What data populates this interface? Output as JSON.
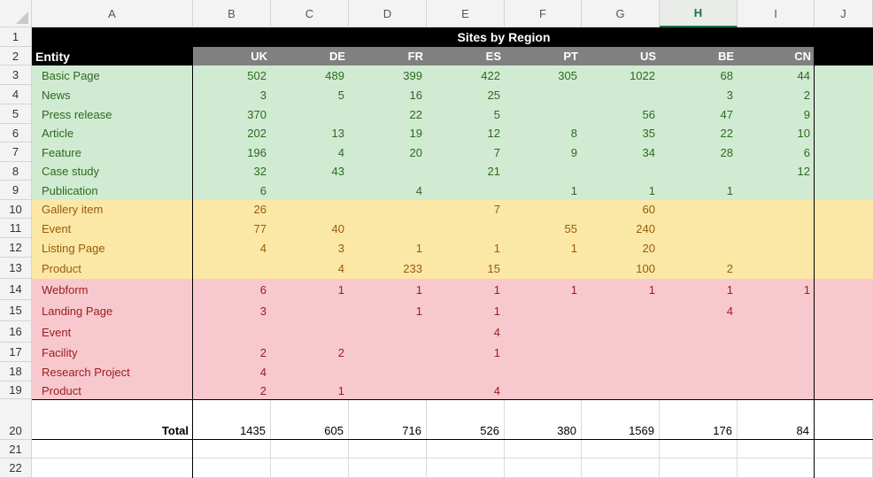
{
  "sheet": {
    "columns": [
      "A",
      "B",
      "C",
      "D",
      "E",
      "F",
      "G",
      "H",
      "I",
      "J"
    ],
    "selected_column": "H",
    "row_numbers": [
      "1",
      "2",
      "3",
      "4",
      "5",
      "6",
      "7",
      "8",
      "9",
      "10",
      "11",
      "12",
      "13",
      "14",
      "15",
      "16",
      "17",
      "18",
      "19",
      "20",
      "21",
      "22"
    ],
    "title": "Sites by Region",
    "entity_header": "Entity",
    "regions": [
      "UK",
      "DE",
      "FR",
      "ES",
      "PT",
      "US",
      "BE",
      "CN"
    ],
    "rows": [
      {
        "entity": "Basic Page",
        "group": "green",
        "values": [
          "502",
          "489",
          "399",
          "422",
          "305",
          "1022",
          "68",
          "44"
        ]
      },
      {
        "entity": "News",
        "group": "green",
        "values": [
          "3",
          "5",
          "16",
          "25",
          "",
          "",
          "3",
          "2"
        ]
      },
      {
        "entity": "Press release",
        "group": "green",
        "values": [
          "370",
          "",
          "22",
          "5",
          "",
          "56",
          "47",
          "9"
        ]
      },
      {
        "entity": "Article",
        "group": "green",
        "values": [
          "202",
          "13",
          "19",
          "12",
          "8",
          "35",
          "22",
          "10"
        ]
      },
      {
        "entity": "Feature",
        "group": "green",
        "values": [
          "196",
          "4",
          "20",
          "7",
          "9",
          "34",
          "28",
          "6"
        ]
      },
      {
        "entity": "Case study",
        "group": "green",
        "values": [
          "32",
          "43",
          "",
          "21",
          "",
          "",
          "",
          "12"
        ]
      },
      {
        "entity": "Publication",
        "group": "green",
        "values": [
          "6",
          "",
          "4",
          "",
          "1",
          "1",
          "1",
          ""
        ]
      },
      {
        "entity": "Gallery item",
        "group": "yellow",
        "values": [
          "26",
          "",
          "",
          "7",
          "",
          "60",
          "",
          ""
        ]
      },
      {
        "entity": "Event",
        "group": "yellow",
        "values": [
          "77",
          "40",
          "",
          "",
          "55",
          "240",
          "",
          ""
        ]
      },
      {
        "entity": "Listing Page",
        "group": "yellow",
        "values": [
          "4",
          "3",
          "1",
          "1",
          "1",
          "20",
          "",
          ""
        ]
      },
      {
        "entity": "Product",
        "group": "yellow",
        "values": [
          "",
          "4",
          "233",
          "15",
          "",
          "100",
          "2",
          ""
        ]
      },
      {
        "entity": "Webform",
        "group": "red",
        "values": [
          "6",
          "1",
          "1",
          "1",
          "1",
          "1",
          "1",
          "1"
        ]
      },
      {
        "entity": "Landing Page",
        "group": "red",
        "values": [
          "3",
          "",
          "1",
          "1",
          "",
          "",
          "4",
          ""
        ]
      },
      {
        "entity": "Event",
        "group": "red",
        "values": [
          "",
          "",
          "",
          "4",
          "",
          "",
          "",
          ""
        ]
      },
      {
        "entity": "Facility",
        "group": "red",
        "values": [
          "2",
          "2",
          "",
          "1",
          "",
          "",
          "",
          ""
        ]
      },
      {
        "entity": "Research Project",
        "group": "red",
        "values": [
          "4",
          "",
          "",
          "",
          "",
          "",
          "",
          ""
        ]
      },
      {
        "entity": "Product",
        "group": "red",
        "values": [
          "2",
          "1",
          "",
          "4",
          "",
          "",
          "",
          ""
        ]
      }
    ],
    "total_label": "Total",
    "totals": [
      "1435",
      "605",
      "716",
      "526",
      "380",
      "1569",
      "176",
      "84"
    ]
  }
}
